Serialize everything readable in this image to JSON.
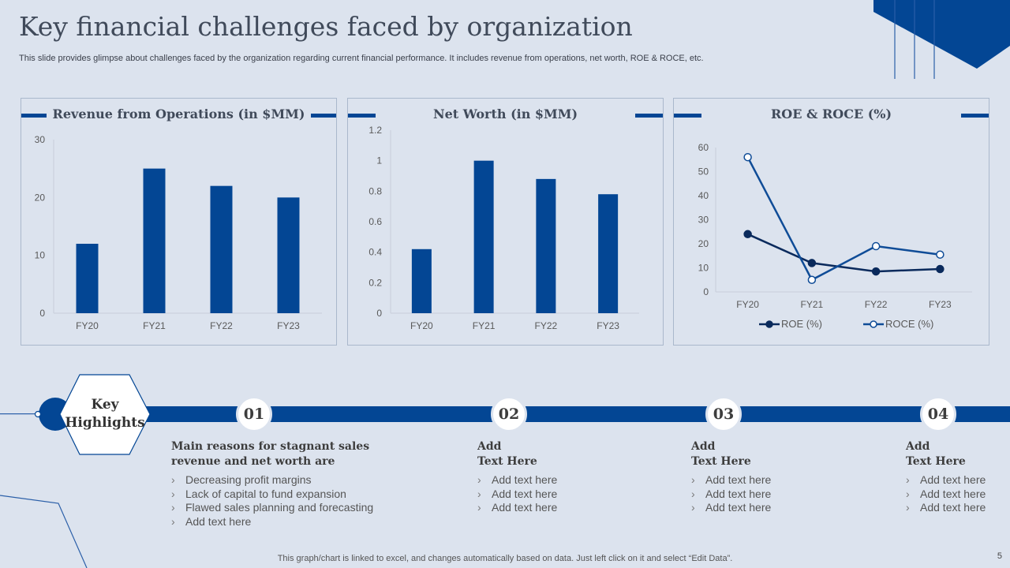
{
  "title": "Key financial challenges faced by organization",
  "subtitle": "This slide provides glimpse about challenges faced by the organization regarding current financial performance. It includes revenue from operations, net worth, ROE & ROCE, etc.",
  "colors": {
    "accent": "#034694",
    "background": "#dce3ee",
    "roe": "#0a2a5c",
    "roce": "#0f4c97"
  },
  "chart_data": [
    {
      "type": "bar",
      "title": "Revenue from Operations (in $MM)",
      "categories": [
        "FY20",
        "FY21",
        "FY22",
        "FY23"
      ],
      "values": [
        12,
        25,
        22,
        20
      ],
      "ylim": [
        0,
        30
      ],
      "yticks": [
        0,
        10,
        20,
        30
      ],
      "ytick_labels": [
        "0",
        "10",
        "20",
        "30"
      ],
      "xlabel": "",
      "ylabel": "",
      "grid": false
    },
    {
      "type": "bar",
      "title": "Net Worth (in $MM)",
      "categories": [
        "FY20",
        "FY21",
        "FY22",
        "FY23"
      ],
      "values": [
        0.42,
        1.0,
        0.88,
        0.78
      ],
      "ylim": [
        0,
        1.2
      ],
      "yticks": [
        0,
        0.2,
        0.4,
        0.6,
        0.8,
        1,
        1.2
      ],
      "ytick_labels": [
        "0",
        "0.2",
        "0.4",
        "0.6",
        "0.8",
        "1",
        "1.2"
      ],
      "xlabel": "",
      "ylabel": "",
      "grid": false
    },
    {
      "type": "line",
      "title": "ROE & ROCE (%)",
      "categories": [
        "FY20",
        "FY21",
        "FY22",
        "FY23"
      ],
      "series": [
        {
          "name": "ROE (%)",
          "values": [
            24,
            12,
            8.5,
            9.5
          ]
        },
        {
          "name": "ROCE (%)",
          "values": [
            56,
            5,
            19,
            15.5
          ]
        }
      ],
      "ylim": [
        0,
        60
      ],
      "yticks": [
        0,
        10,
        20,
        30,
        40,
        50,
        60
      ],
      "ytick_labels": [
        "0",
        "10",
        "20",
        "30",
        "40",
        "50",
        "60"
      ],
      "legend": "bottom",
      "grid": false
    }
  ],
  "highlights_label": [
    "Key",
    "Highlights"
  ],
  "highlights": [
    {
      "number": "01",
      "title": [
        "Main reasons for stagnant sales",
        "revenue and net worth are"
      ],
      "items": [
        "Decreasing profit margins",
        "Lack of capital to fund expansion",
        "Flawed sales planning and forecasting",
        "Add text here"
      ]
    },
    {
      "number": "02",
      "title": [
        "Add",
        "Text Here"
      ],
      "items": [
        "Add text here",
        "Add text here",
        "Add text here"
      ]
    },
    {
      "number": "03",
      "title": [
        "Add",
        "Text Here"
      ],
      "items": [
        "Add text here",
        "Add text here",
        "Add text here"
      ]
    },
    {
      "number": "04",
      "title": [
        "Add",
        "Text Here"
      ],
      "items": [
        "Add text here",
        "Add text here",
        "Add text here"
      ]
    }
  ],
  "bullet_glyph": "›",
  "footer": "This graph/chart is linked to excel,  and changes automatically based on data. Just left click on it and select “Edit Data”.",
  "page_number": "5"
}
